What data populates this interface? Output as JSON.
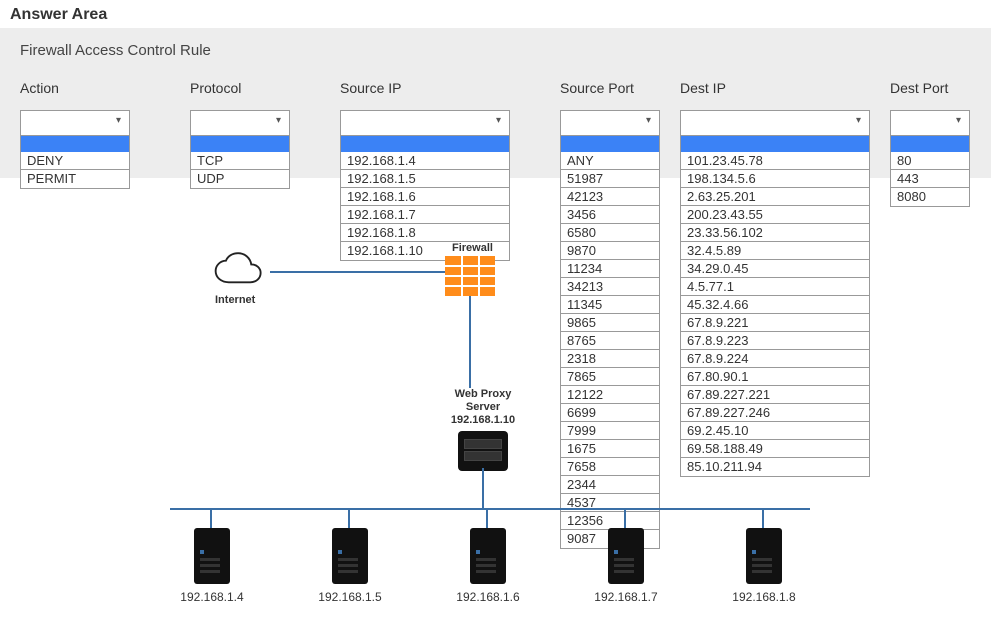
{
  "title": "Answer Area",
  "panel_title": "Firewall Access Control Rule",
  "columns": {
    "action": {
      "label": "Action",
      "options": [
        "DENY",
        "PERMIT"
      ]
    },
    "protocol": {
      "label": "Protocol",
      "options": [
        "TCP",
        "UDP"
      ]
    },
    "srcip": {
      "label": "Source IP",
      "options": [
        "192.168.1.4",
        "192.168.1.5",
        "192.168.1.6",
        "192.168.1.7",
        "192.168.1.8",
        "192.168.1.10"
      ]
    },
    "srcport": {
      "label": "Source Port",
      "options": [
        "ANY",
        "51987",
        "42123",
        "3456",
        "6580",
        "9870",
        "11234",
        "34213",
        "11345",
        "9865",
        "8765",
        "2318",
        "7865",
        "12122",
        "6699",
        "7999",
        "1675",
        "7658",
        "2344",
        "4537",
        "12356",
        "9087"
      ]
    },
    "destip": {
      "label": "Dest IP",
      "options": [
        "101.23.45.78",
        "198.134.5.6",
        "2.63.25.201",
        "200.23.43.55",
        "23.33.56.102",
        "32.4.5.89",
        "34.29.0.45",
        "4.5.77.1",
        "45.32.4.66",
        "67.8.9.221",
        "67.8.9.223",
        "67.8.9.224",
        "67.80.90.1",
        "67.89.227.221",
        "67.89.227.246",
        "69.2.45.10",
        "69.58.188.49",
        "85.10.211.94"
      ]
    },
    "destport": {
      "label": "Dest Port",
      "options": [
        "80",
        "443",
        "8080"
      ]
    }
  },
  "diagram": {
    "internet_label": "Internet",
    "firewall_label": "Firewall",
    "proxy_name": "Web Proxy Server",
    "proxy_ip": "192.168.1.10",
    "hosts": [
      "192.168.1.4",
      "192.168.1.5",
      "192.168.1.6",
      "192.168.1.7",
      "192.168.1.8"
    ]
  },
  "colors": {
    "highlight": "#3b82f6",
    "line": "#3a6fa6",
    "panel_bg": "#ededed",
    "firewall": "#ff8c1a"
  }
}
